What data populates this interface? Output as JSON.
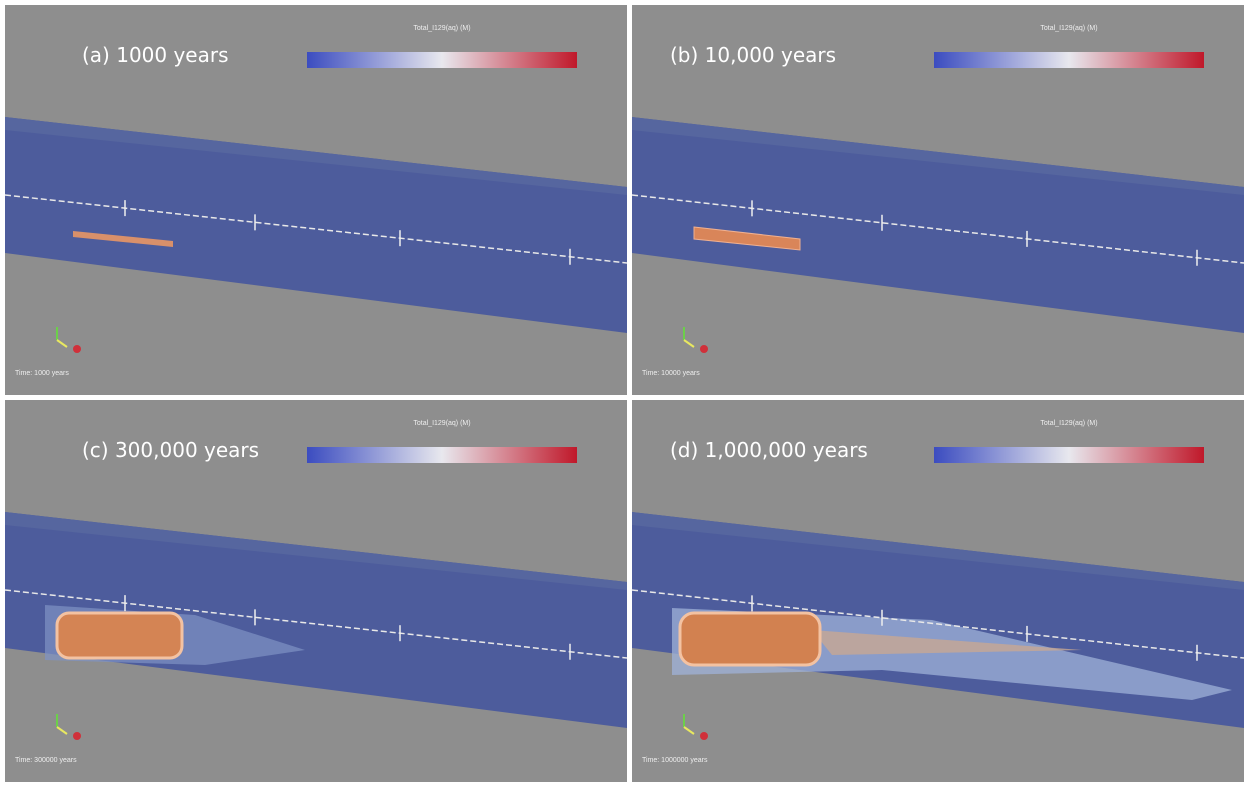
{
  "panels": [
    {
      "label": "(a) 1000 years",
      "colorbar_title": "Total_I129(aq) (M)",
      "time": "Time: 1000 years"
    },
    {
      "label": "(b) 10,000 years",
      "colorbar_title": "Total_I129(aq) (M)",
      "time": "Time: 10000 years"
    },
    {
      "label": "(c) 300,000 years",
      "colorbar_title": "Total_I129(aq) (M)",
      "time": "Time: 300000 years"
    },
    {
      "label": "(d) 1,000,000 years",
      "colorbar_title": "Total_I129(aq) (M)",
      "time": "Time: 1000000 years"
    }
  ]
}
